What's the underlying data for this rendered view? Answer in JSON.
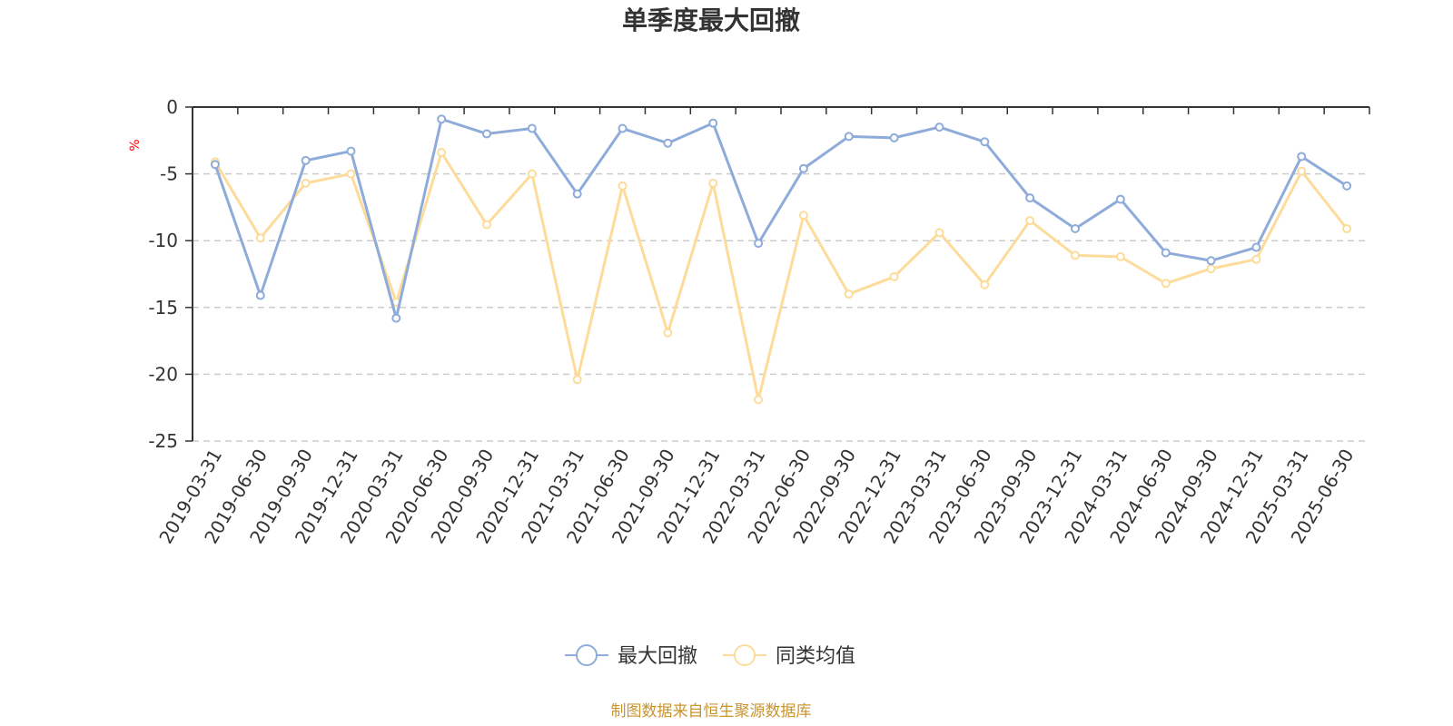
{
  "colors": {
    "series_1": "#8eabd9",
    "series_2": "#fddc9b",
    "axis": "#333333",
    "grid": "#cccccc",
    "unit": "#ff0000",
    "source": "#c8952e"
  },
  "source_text": "制图数据来自恒生聚源数据库",
  "chart_data": {
    "type": "line",
    "title": "单季度最大回撤",
    "ylabel": "%",
    "xlabel": "",
    "ylim": [
      -25,
      0
    ],
    "yticks": [
      0,
      -5,
      -10,
      -15,
      -20,
      -25
    ],
    "grid": true,
    "legend_position": "bottom-center",
    "categories": [
      "2019-03-31",
      "2019-06-30",
      "2019-09-30",
      "2019-12-31",
      "2020-03-31",
      "2020-06-30",
      "2020-09-30",
      "2020-12-31",
      "2021-03-31",
      "2021-06-30",
      "2021-09-30",
      "2021-12-31",
      "2022-03-31",
      "2022-06-30",
      "2022-09-30",
      "2022-12-31",
      "2023-03-31",
      "2023-06-30",
      "2023-09-30",
      "2023-12-31",
      "2024-03-31",
      "2024-06-30",
      "2024-09-30",
      "2024-12-31",
      "2025-03-31",
      "2025-06-30"
    ],
    "series": [
      {
        "name": "最大回撤",
        "color": "#8eabd9",
        "values": [
          -4.3,
          -14.1,
          -4.0,
          -3.3,
          -15.8,
          -0.9,
          -2.0,
          -1.6,
          -6.5,
          -1.6,
          -2.7,
          -1.2,
          -10.2,
          -4.6,
          -2.2,
          -2.3,
          -1.5,
          -2.6,
          -6.8,
          -9.1,
          -6.9,
          -10.9,
          -11.5,
          -10.5,
          -3.7,
          -5.9
        ]
      },
      {
        "name": "同类均值",
        "color": "#fddc9b",
        "values": [
          -4.1,
          -9.8,
          -5.7,
          -5.0,
          -14.6,
          -3.4,
          -8.8,
          -5.0,
          -20.4,
          -5.9,
          -16.9,
          -5.7,
          -21.9,
          -8.1,
          -14.0,
          -12.7,
          -9.4,
          -13.3,
          -8.5,
          -11.1,
          -11.2,
          -13.2,
          -12.1,
          -11.4,
          -4.8,
          -9.1
        ]
      }
    ]
  }
}
